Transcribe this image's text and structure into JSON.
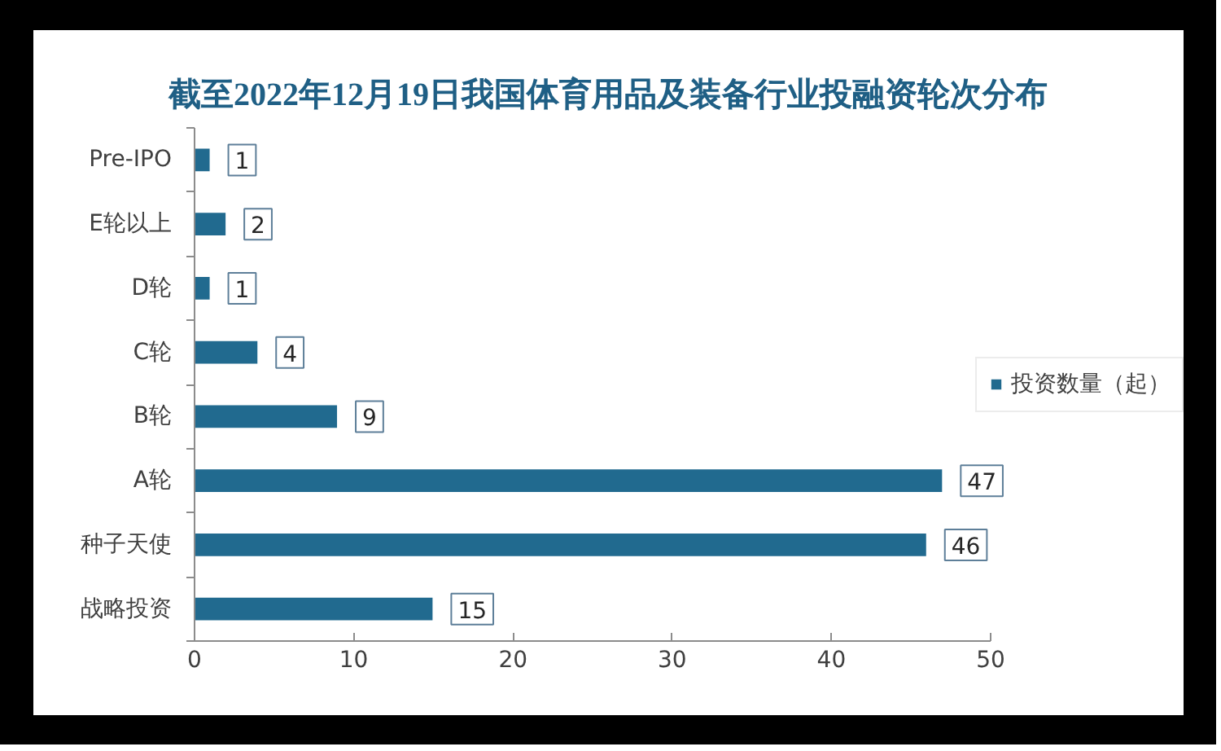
{
  "chart_data": {
    "type": "bar",
    "orientation": "horizontal",
    "title": "截至2022年12月19日我国体育用品及装备行业投融资轮次分布",
    "categories": [
      "Pre-IPO",
      "E轮以上",
      "D轮",
      "C轮",
      "B轮",
      "A轮",
      "种子天使",
      "战略投资"
    ],
    "series": [
      {
        "name": "投资数量（起）",
        "color": "#216a8f",
        "values": [
          1,
          2,
          1,
          4,
          9,
          47,
          46,
          15
        ]
      }
    ],
    "xlim": [
      0,
      50
    ],
    "xticks": [
      0,
      10,
      20,
      30,
      40,
      50
    ],
    "data_labels": true,
    "legend": "right"
  }
}
